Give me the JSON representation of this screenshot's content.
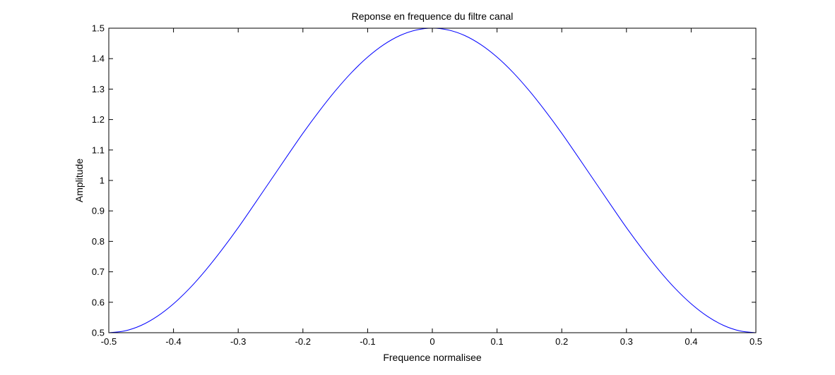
{
  "chart_data": {
    "type": "line",
    "title": "Reponse en frequence du filtre canal",
    "xlabel": "Frequence normalisee",
    "ylabel": "Amplitude",
    "xlim": [
      -0.5,
      0.5
    ],
    "ylim": [
      0.5,
      1.5
    ],
    "xticks": [
      "-0.5",
      "-0.4",
      "-0.3",
      "-0.2",
      "-0.1",
      "0",
      "0.1",
      "0.2",
      "0.3",
      "0.4",
      "0.5"
    ],
    "yticks": [
      "0.5",
      "0.6",
      "0.7",
      "0.8",
      "0.9",
      "1",
      "1.1",
      "1.2",
      "1.3",
      "1.4",
      "1.5"
    ],
    "grid": false,
    "series": [
      {
        "color": "#0000ff",
        "x": [
          -0.5,
          -0.475,
          -0.45,
          -0.425,
          -0.4,
          -0.375,
          -0.35,
          -0.325,
          -0.3,
          -0.275,
          -0.25,
          -0.225,
          -0.2,
          -0.175,
          -0.15,
          -0.125,
          -0.1,
          -0.075,
          -0.05,
          -0.025,
          0,
          0.025,
          0.05,
          0.075,
          0.1,
          0.125,
          0.15,
          0.175,
          0.2,
          0.225,
          0.25,
          0.275,
          0.3,
          0.325,
          0.35,
          0.375,
          0.4,
          0.425,
          0.45,
          0.475,
          0.5
        ],
        "y": [
          0.5,
          0.506,
          0.524,
          0.554,
          0.595,
          0.646,
          0.706,
          0.773,
          0.845,
          0.922,
          1.0,
          1.078,
          1.155,
          1.227,
          1.294,
          1.354,
          1.405,
          1.446,
          1.476,
          1.494,
          1.5,
          1.494,
          1.476,
          1.446,
          1.405,
          1.354,
          1.294,
          1.227,
          1.155,
          1.078,
          1.0,
          0.922,
          0.845,
          0.773,
          0.706,
          0.646,
          0.595,
          0.554,
          0.524,
          0.506,
          0.5
        ]
      }
    ]
  }
}
